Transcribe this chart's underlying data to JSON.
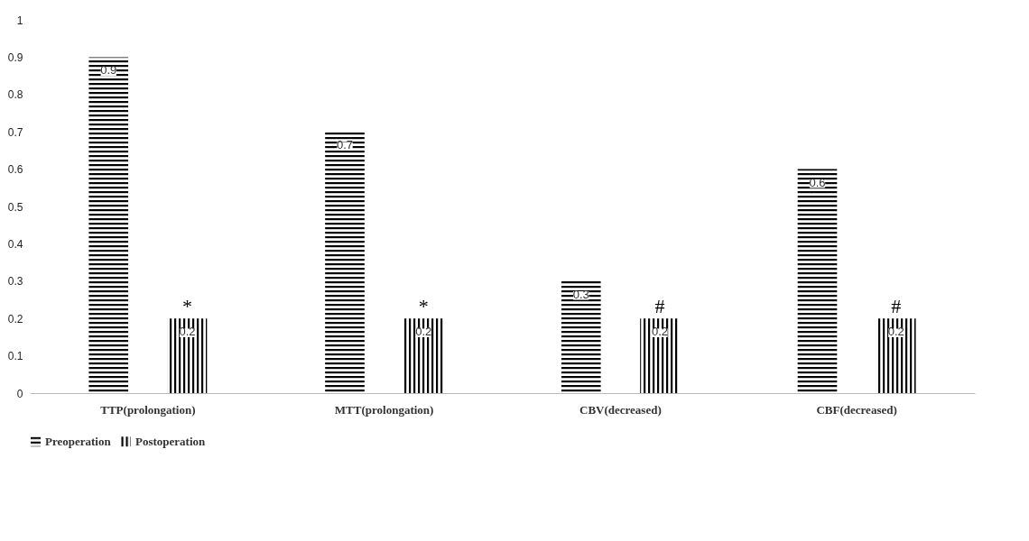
{
  "chart_data": {
    "type": "bar",
    "categories": [
      "TTP(prolongation)",
      "MTT(prolongation)",
      "CBV(decreased)",
      "CBF(decreased)"
    ],
    "series": [
      {
        "name": "Preoperation",
        "color": "#000000",
        "values": [
          0.9,
          0.7,
          0.3,
          0.6
        ]
      },
      {
        "name": "Postoperation",
        "color": "#000000",
        "values": [
          0.2,
          0.2,
          0.2,
          0.2
        ]
      }
    ],
    "ylim": [
      0,
      1
    ],
    "yticks": [
      0,
      0.1,
      0.2,
      0.3,
      0.4,
      0.5,
      0.6,
      0.7,
      0.8,
      0.9,
      1
    ],
    "data_labels": true,
    "legend": "bottom",
    "grid": false,
    "annotations": [
      "*",
      "*",
      "#",
      "#"
    ]
  }
}
